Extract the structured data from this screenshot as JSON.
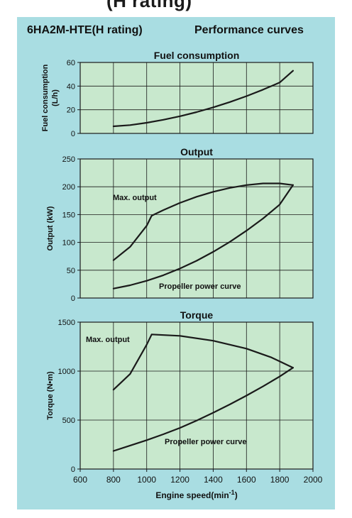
{
  "page": {
    "cut_heading": "(H rating)",
    "model_title": "6HA2M-HTE(H rating)",
    "section_title": "Performance curves",
    "x_axis_label_main": "Engine speed(min",
    "x_axis_label_sup": "-1",
    "x_axis_label_end": ")"
  },
  "colors": {
    "panel_background": "#a9dde2",
    "plot_background": "#c8e8cd",
    "grid_line": "#1a1a1a",
    "curve": "#1a1a1a"
  },
  "chart_data": [
    {
      "type": "line",
      "title": "Fuel consumption",
      "ylabel_line1": "Fuel consumption",
      "ylabel_line2": "(L/h)",
      "xlim": [
        600,
        2000
      ],
      "ylim": [
        0,
        60
      ],
      "yticks": [
        0,
        20,
        40,
        60
      ],
      "grid": true,
      "series": [
        {
          "x": [
            800,
            900,
            1000,
            1100,
            1200,
            1300,
            1400,
            1500,
            1600,
            1700,
            1800,
            1880
          ],
          "values": [
            6,
            7,
            9,
            11.5,
            14.5,
            18,
            22,
            26.5,
            31.5,
            37,
            43,
            53
          ]
        }
      ]
    },
    {
      "type": "line",
      "title": "Output",
      "ylabel": "Output (kW)",
      "xlim": [
        600,
        2000
      ],
      "ylim": [
        0,
        250
      ],
      "yticks": [
        0,
        50,
        100,
        150,
        200,
        250
      ],
      "grid": true,
      "annotations": [
        "Max. output",
        "Propeller power curve"
      ],
      "series": [
        {
          "name": "Max. output",
          "x": [
            800,
            900,
            1000,
            1030,
            1100,
            1200,
            1300,
            1400,
            1500,
            1600,
            1700,
            1800,
            1880
          ],
          "values": [
            68,
            92,
            130,
            148,
            158,
            171,
            182,
            191,
            198,
            203,
            206,
            206,
            203
          ]
        },
        {
          "name": "Propeller power curve",
          "x": [
            800,
            900,
            1000,
            1100,
            1200,
            1300,
            1400,
            1500,
            1600,
            1700,
            1800,
            1880
          ],
          "values": [
            17,
            23,
            31,
            41,
            53,
            67,
            83,
            101,
            121,
            143,
            168,
            203
          ]
        }
      ]
    },
    {
      "type": "line",
      "title": "Torque",
      "ylabel": "Torque (N•m)",
      "xlim": [
        600,
        2000
      ],
      "ylim": [
        0,
        1500
      ],
      "xticks": [
        600,
        800,
        1000,
        1200,
        1400,
        1600,
        1800,
        2000
      ],
      "yticks": [
        0,
        500,
        1000,
        1500
      ],
      "grid": true,
      "annotations": [
        "Max. output",
        "Propeller power curve"
      ],
      "series": [
        {
          "name": "Max. output",
          "x": [
            800,
            900,
            1000,
            1030,
            1200,
            1400,
            1600,
            1750,
            1880
          ],
          "values": [
            810,
            970,
            1270,
            1375,
            1360,
            1310,
            1230,
            1140,
            1035
          ]
        },
        {
          "name": "Propeller power curve",
          "x": [
            800,
            900,
            1000,
            1100,
            1200,
            1300,
            1400,
            1500,
            1600,
            1700,
            1800,
            1880
          ],
          "values": [
            185,
            240,
            295,
            355,
            420,
            495,
            575,
            660,
            750,
            845,
            945,
            1035
          ]
        }
      ]
    }
  ]
}
